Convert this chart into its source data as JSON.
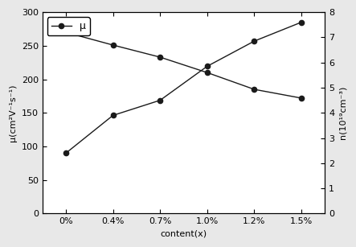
{
  "x_labels": [
    "0%",
    "0.4%",
    "0.7%",
    "1.0%",
    "1.2%",
    "1.5%"
  ],
  "x_values": [
    0,
    1,
    2,
    3,
    4,
    5
  ],
  "mu_values": [
    270,
    251,
    233,
    210,
    185,
    172
  ],
  "n_values": [
    2.4,
    3.9,
    4.5,
    5.85,
    6.85,
    7.6
  ],
  "mu_ylim": [
    0,
    300
  ],
  "n_ylim": [
    0,
    8
  ],
  "n_yticks": [
    0,
    1,
    2,
    3,
    4,
    5,
    6,
    7,
    8
  ],
  "mu_yticks": [
    0,
    50,
    100,
    150,
    200,
    250,
    300
  ],
  "xlabel": "content(x)",
  "ylabel_left": "μ(cm²V⁻¹s⁻¹)",
  "ylabel_right": "n(10¹⁹cm⁻³)",
  "legend_label": "μ",
  "line_color": "#1a1a1a",
  "marker": "o",
  "marker_size": 4.5,
  "bg_color": "#e8e8e8",
  "axis_bg_color": "#ffffff"
}
